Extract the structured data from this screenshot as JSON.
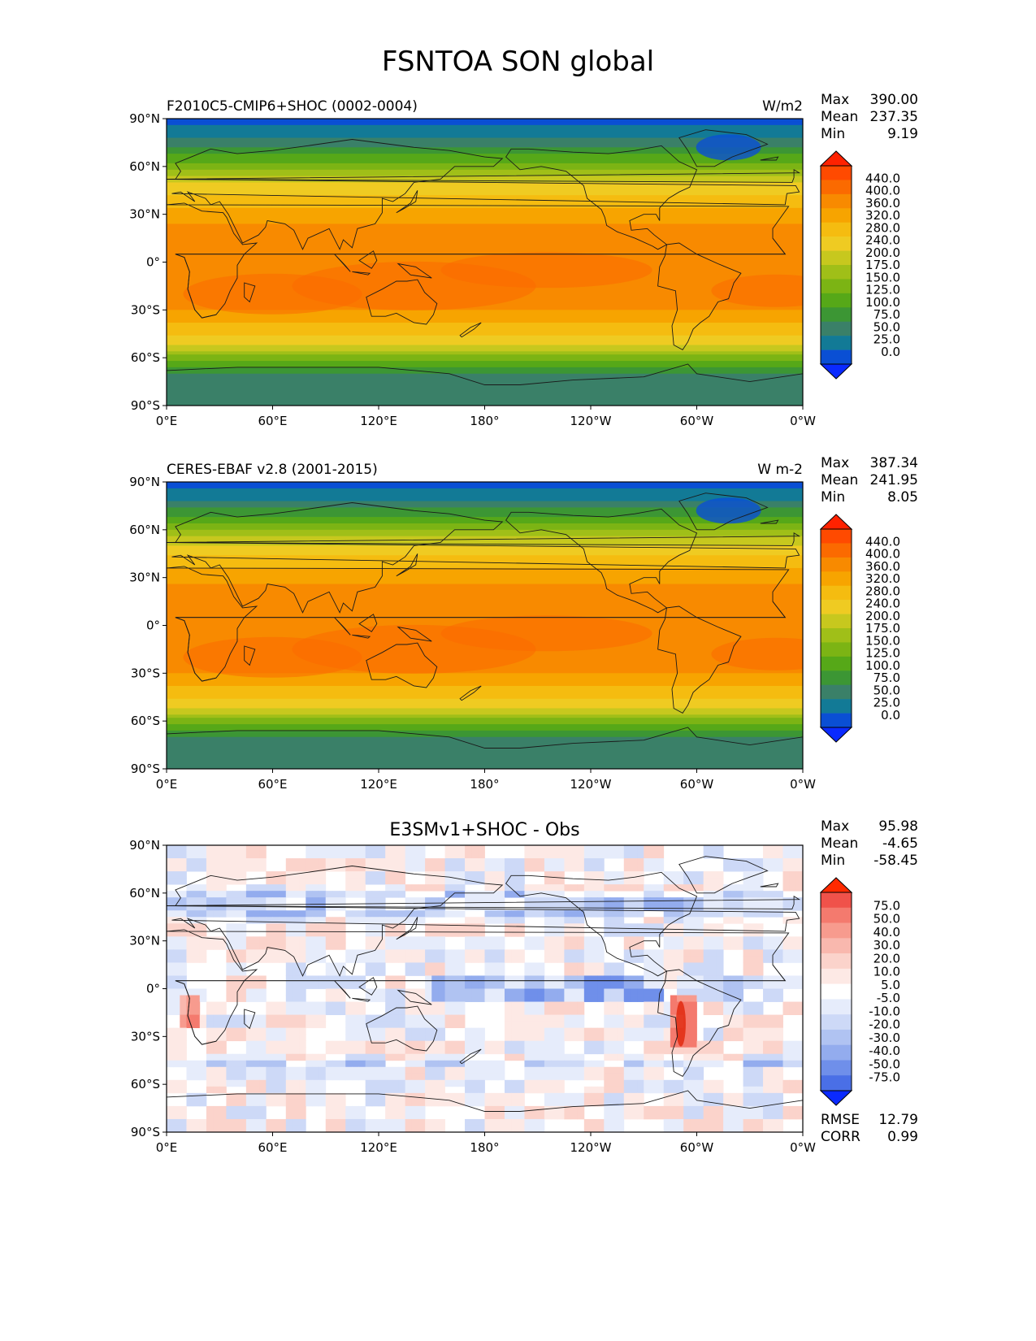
{
  "title": "FSNTOA SON global",
  "x_ticks": [
    "0°E",
    "60°E",
    "120°E",
    "180°",
    "120°W",
    "60°W",
    "0°W"
  ],
  "y_ticks": [
    "90°N",
    "60°N",
    "30°N",
    "0°",
    "30°S",
    "60°S",
    "90°S"
  ],
  "stats_labels": {
    "max": "Max",
    "mean": "Mean",
    "min": "Min",
    "rmse": "RMSE",
    "corr": "CORR"
  },
  "panels": [
    {
      "kind": "field",
      "title_left": "F2010C5-CMIP6+SHOC (0002-0004)",
      "title_center": "",
      "units": "W/m2",
      "stats": {
        "max": "390.00",
        "mean": "237.35",
        "min": "9.19"
      },
      "colorbar": {
        "labels": [
          "440.0",
          "400.0",
          "360.0",
          "320.0",
          "280.0",
          "240.0",
          "200.0",
          "175.0",
          "150.0",
          "125.0",
          "100.0",
          "75.0",
          "50.0",
          "25.0",
          "0.0"
        ],
        "colors": [
          "#ff2200",
          "#ff4a00",
          "#fb6a00",
          "#f88a00",
          "#f7a400",
          "#f5bc10",
          "#efcb22",
          "#c7c81e",
          "#a0bf18",
          "#7cb414",
          "#56a818",
          "#3c9634",
          "#3a8068",
          "#127a96",
          "#0a4fd4",
          "#0a2aff"
        ]
      },
      "zonal_profile": [
        [
          90,
          15
        ],
        [
          80,
          40
        ],
        [
          70,
          85
        ],
        [
          60,
          140
        ],
        [
          50,
          200
        ],
        [
          40,
          255
        ],
        [
          30,
          300
        ],
        [
          20,
          330
        ],
        [
          10,
          345
        ],
        [
          0,
          345
        ],
        [
          -10,
          350
        ],
        [
          -20,
          345
        ],
        [
          -30,
          320
        ],
        [
          -40,
          270
        ],
        [
          -50,
          210
        ],
        [
          -60,
          140
        ],
        [
          -70,
          70
        ],
        [
          -80,
          55
        ],
        [
          -90,
          50
        ]
      ]
    },
    {
      "kind": "field",
      "title_left": "CERES-EBAF v2.8 (2001-2015)",
      "title_center": "",
      "units": "W m-2",
      "stats": {
        "max": "387.34",
        "mean": "241.95",
        "min": "8.05"
      },
      "colorbar": {
        "labels": [
          "440.0",
          "400.0",
          "360.0",
          "320.0",
          "280.0",
          "240.0",
          "200.0",
          "175.0",
          "150.0",
          "125.0",
          "100.0",
          "75.0",
          "50.0",
          "25.0",
          "0.0"
        ],
        "colors": [
          "#ff2200",
          "#ff4a00",
          "#fb6a00",
          "#f88a00",
          "#f7a400",
          "#f5bc10",
          "#efcb22",
          "#c7c81e",
          "#a0bf18",
          "#7cb414",
          "#56a818",
          "#3c9634",
          "#3a8068",
          "#127a96",
          "#0a4fd4",
          "#0a2aff"
        ]
      },
      "zonal_profile": [
        [
          90,
          15
        ],
        [
          80,
          45
        ],
        [
          70,
          90
        ],
        [
          60,
          145
        ],
        [
          50,
          205
        ],
        [
          40,
          260
        ],
        [
          30,
          305
        ],
        [
          20,
          335
        ],
        [
          10,
          345
        ],
        [
          0,
          350
        ],
        [
          -10,
          355
        ],
        [
          -20,
          345
        ],
        [
          -30,
          320
        ],
        [
          -40,
          270
        ],
        [
          -50,
          210
        ],
        [
          -60,
          140
        ],
        [
          -70,
          70
        ],
        [
          -80,
          55
        ],
        [
          -90,
          50
        ]
      ]
    },
    {
      "kind": "diff",
      "title_left": "",
      "title_center": "E3SMv1+SHOC - Obs",
      "units": "",
      "stats": {
        "max": "95.98",
        "mean": "-4.65",
        "min": "-58.45",
        "rmse": "12.79",
        "corr": "0.99"
      },
      "colorbar": {
        "labels": [
          "75.0",
          "50.0",
          "40.0",
          "30.0",
          "20.0",
          "10.0",
          "5.0",
          "-5.0",
          "-10.0",
          "-20.0",
          "-30.0",
          "-40.0",
          "-50.0",
          "-75.0"
        ],
        "colors": [
          "#ff2a00",
          "#f0524a",
          "#f47a6e",
          "#f79b8e",
          "#f9b8ae",
          "#fbd3cb",
          "#fde9e5",
          "#ffffff",
          "#e6ecfb",
          "#cdd9f7",
          "#b0c3f2",
          "#93acee",
          "#6f8fea",
          "#4a6fe6",
          "#0a2aff"
        ]
      },
      "zonal_profile": []
    }
  ]
}
